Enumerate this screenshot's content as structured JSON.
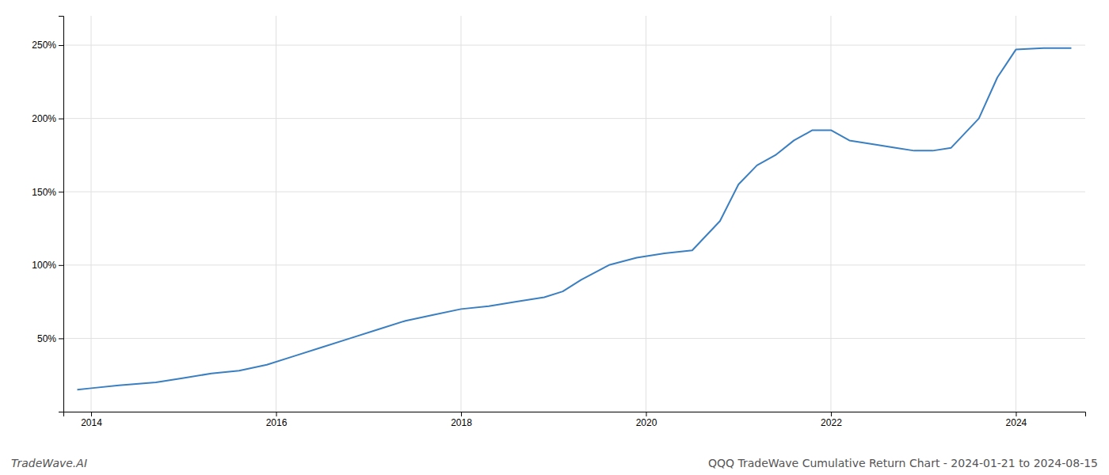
{
  "chart_data": {
    "type": "line",
    "title": "QQQ TradeWave Cumulative Return Chart - 2024-01-21 to 2024-08-15",
    "annotations": [
      "TradeWave.AI"
    ],
    "x": [
      2013.85,
      2014.0,
      2014.3,
      2014.7,
      2015.0,
      2015.3,
      2015.6,
      2015.9,
      2016.2,
      2016.5,
      2016.8,
      2017.1,
      2017.4,
      2017.7,
      2018.0,
      2018.3,
      2018.6,
      2018.9,
      2019.1,
      2019.3,
      2019.6,
      2019.9,
      2020.2,
      2020.5,
      2020.8,
      2021.0,
      2021.2,
      2021.4,
      2021.6,
      2021.8,
      2022.0,
      2022.2,
      2022.5,
      2022.7,
      2022.9,
      2023.1,
      2023.3,
      2023.6,
      2023.8,
      2024.0,
      2024.3,
      2024.6
    ],
    "values": [
      15,
      16,
      18,
      20,
      23,
      26,
      28,
      32,
      38,
      44,
      50,
      56,
      62,
      66,
      70,
      72,
      75,
      78,
      82,
      90,
      100,
      105,
      108,
      110,
      130,
      155,
      168,
      175,
      185,
      192,
      192,
      185,
      182,
      180,
      178,
      178,
      180,
      200,
      228,
      247,
      248,
      248
    ],
    "color": "#3a7fc1",
    "xlim": [
      2013.7,
      2024.75
    ],
    "xticks": [
      2014,
      2016,
      2018,
      2020,
      2022,
      2024
    ],
    "ylim": [
      0,
      270
    ],
    "yticks": [
      {
        "value": 50,
        "label": "50%"
      },
      {
        "value": 100,
        "label": "100%"
      },
      {
        "value": 150,
        "label": "150%"
      },
      {
        "value": 200,
        "label": "200%"
      },
      {
        "value": 250,
        "label": "250%"
      }
    ],
    "grid": true
  }
}
